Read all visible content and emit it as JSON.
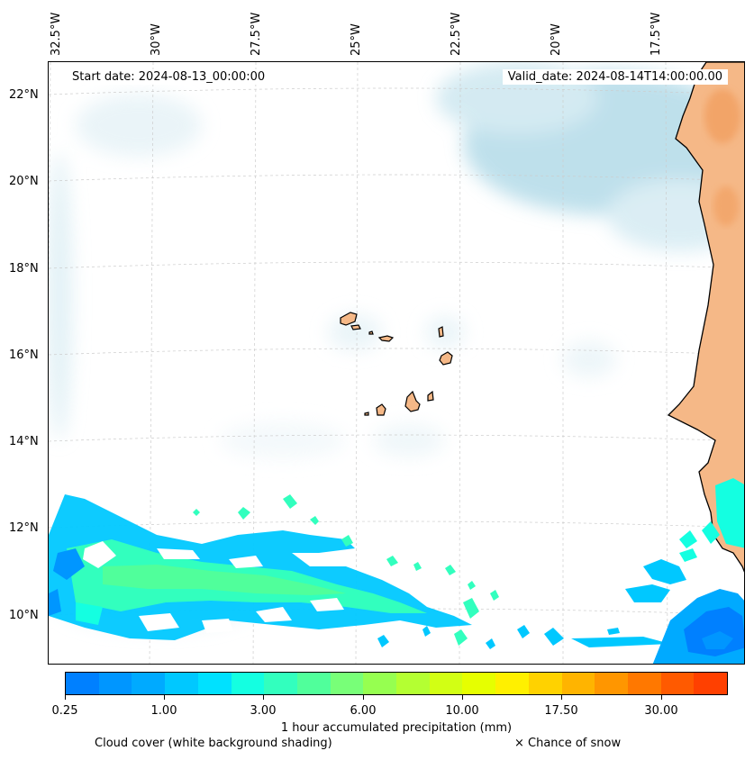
{
  "map": {
    "start_label": "Start date: 2024-08-13_00:00:00",
    "valid_label": "Valid_date: 2024-08-14T14:00:00.00",
    "longitude_labels": [
      "32.5°W",
      "30°W",
      "27.5°W",
      "25°W",
      "22.5°W",
      "20°W",
      "17.5°W"
    ],
    "latitude_labels": [
      "22°N",
      "20°N",
      "18°N",
      "16°N",
      "14°N",
      "12°N",
      "10°N"
    ],
    "land_color": "#f5b887",
    "coast_color": "#000000",
    "cloud_color": "#add8e6"
  },
  "colorbar": {
    "title": "1 hour accumulated precipitation (mm)",
    "tick_labels": [
      "0.25",
      "1.00",
      "3.00",
      "6.00",
      "10.00",
      "17.50",
      "30.00"
    ],
    "colors": [
      "#0080ff",
      "#0096ff",
      "#00aaff",
      "#00c8ff",
      "#00e1ff",
      "#14ffe1",
      "#32ffbe",
      "#50ff9b",
      "#78ff78",
      "#96ff50",
      "#b4ff32",
      "#d2ff14",
      "#e6ff00",
      "#fff000",
      "#ffd200",
      "#ffb400",
      "#ff9600",
      "#ff7800",
      "#ff5a00",
      "#ff4000"
    ]
  },
  "legend": {
    "cloud_cover_label": "Cloud cover (white background shading)",
    "snow_label": "× Chance of snow"
  }
}
